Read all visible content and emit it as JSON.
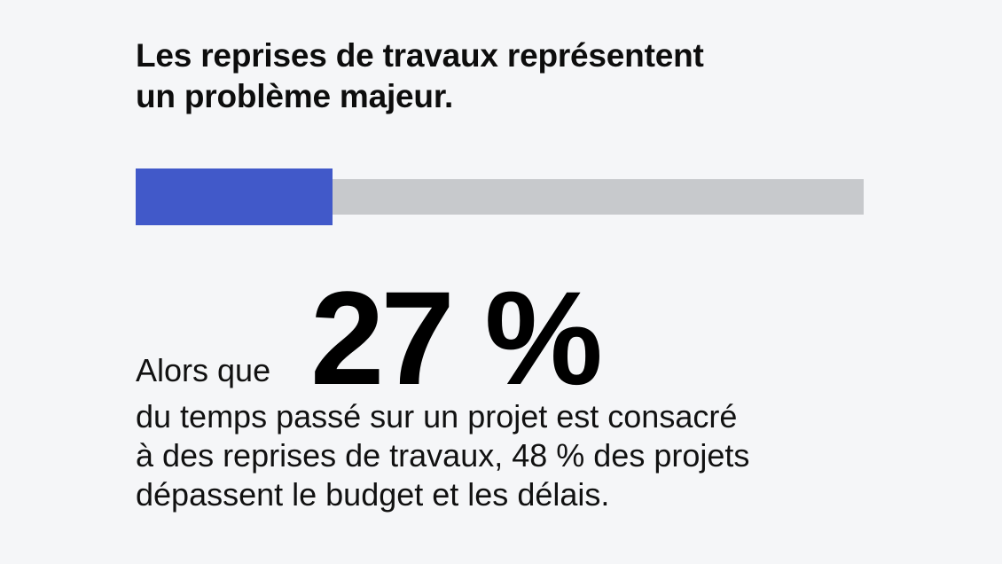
{
  "colors": {
    "background": "#f5f6f8",
    "accent": "#4159c9",
    "track": "#c7c9cc"
  },
  "headline": {
    "line1": "Les reprises de travaux représentent",
    "line2": "un problème majeur."
  },
  "progress": {
    "percent": 27
  },
  "stat": {
    "lead": "Alors que",
    "value": "27 %"
  },
  "body": {
    "line1": "du temps passé sur un projet est consacré",
    "line2": "à des reprises de travaux, 48 % des projets",
    "line3": "dépassent le budget et les délais."
  }
}
